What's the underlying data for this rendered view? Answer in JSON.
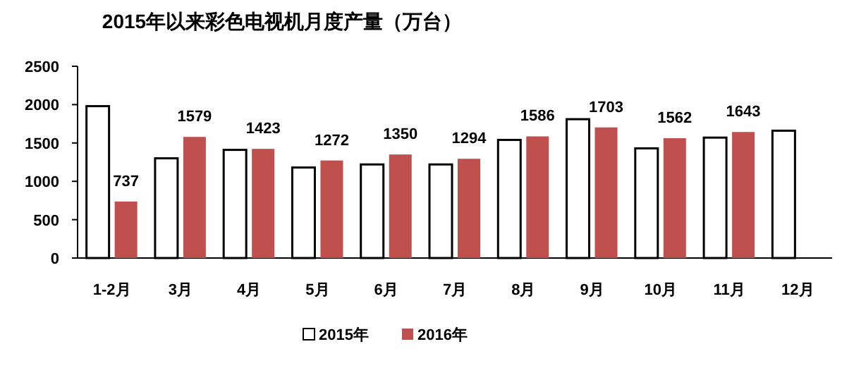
{
  "chart_data": {
    "type": "bar",
    "title": "2015年以来彩色电视机月度产量（万台）",
    "categories": [
      "1-2月",
      "3月",
      "4月",
      "5月",
      "6月",
      "7月",
      "8月",
      "9月",
      "10月",
      "11月",
      "12月"
    ],
    "series": [
      {
        "name": "2015年",
        "color": "#ffffff",
        "values": [
          1980,
          1300,
          1410,
          1180,
          1220,
          1220,
          1540,
          1810,
          1430,
          1570,
          1660
        ]
      },
      {
        "name": "2016年",
        "color": "#c0504d",
        "values": [
          737,
          1579,
          1423,
          1272,
          1350,
          1294,
          1586,
          1703,
          1562,
          1643,
          null
        ],
        "value_labels": [
          "737",
          "1579",
          "1423",
          "1272",
          "1350",
          "1294",
          "1586",
          "1703",
          "1562",
          "1643",
          null
        ]
      }
    ],
    "ylim": [
      0,
      2500
    ],
    "yticks": [
      0,
      500,
      1000,
      1500,
      2000,
      2500
    ],
    "grid": false,
    "legend": "bottom"
  }
}
